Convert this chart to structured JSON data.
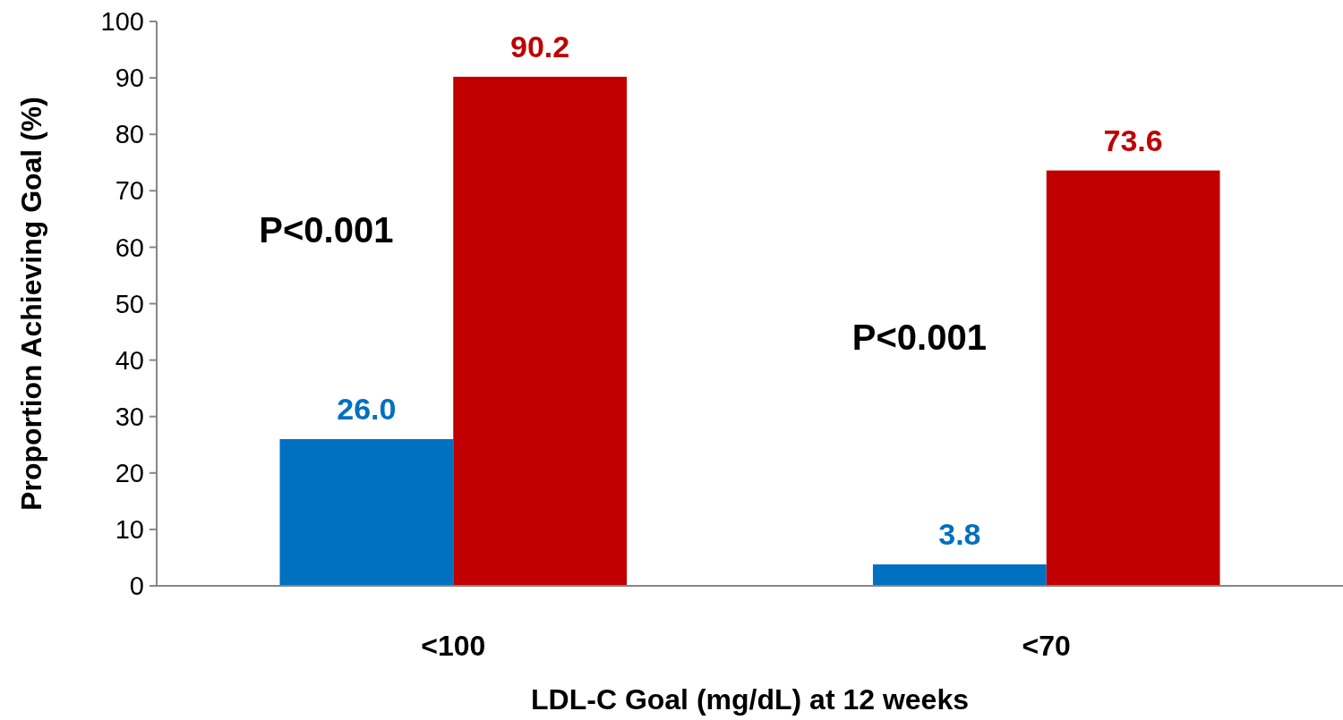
{
  "chart_data": {
    "type": "bar",
    "xlabel": "LDL-C Goal (mg/dL) at 12 weeks",
    "ylabel": "Proportion Achieving Goal (%)",
    "categories": [
      "<100",
      "<70"
    ],
    "series": [
      {
        "color": "#0070c0",
        "values": [
          26.0,
          3.8
        ],
        "value_labels": [
          "26.0",
          "3.8"
        ]
      },
      {
        "color": "#c00000",
        "values": [
          90.2,
          73.6
        ],
        "value_labels": [
          "90.2",
          "73.6"
        ]
      }
    ],
    "ylim": [
      0,
      100
    ],
    "yticks": [
      0,
      10,
      20,
      30,
      40,
      50,
      60,
      70,
      80,
      90,
      100
    ],
    "grid": false,
    "annotations": [
      {
        "text": "P<0.001",
        "x": "<100",
        "y": 63
      },
      {
        "text": "P<0.001",
        "x": "<70",
        "y": 44
      }
    ]
  }
}
